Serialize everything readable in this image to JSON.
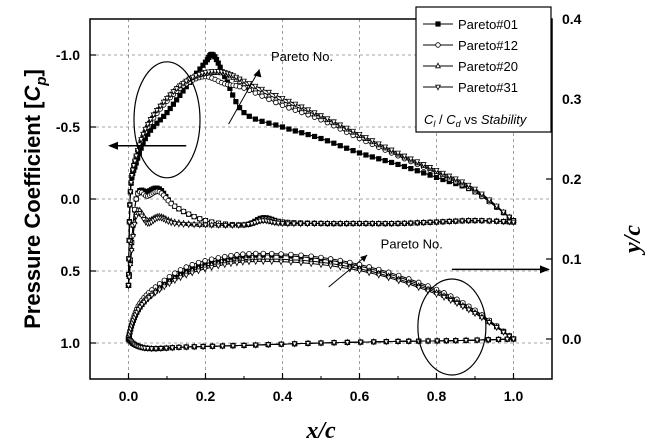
{
  "chart_data": {
    "type": "line",
    "title": "",
    "xlabel": "x/c",
    "ylabel_left": "Pressure Coefficient [C_p]",
    "ylabel_right": "y/c",
    "xlim": [
      -0.1,
      1.1
    ],
    "ylim_left": [
      1.25,
      -1.25
    ],
    "ylim_left_inverted": true,
    "ylim_right": [
      -0.05,
      0.4
    ],
    "x_ticks": [
      "0.0",
      "0.2",
      "0.4",
      "0.6",
      "0.8",
      "1.0"
    ],
    "y_left_ticks": [
      "-1.0",
      "-0.5",
      "0.0",
      "0.5",
      "1.0"
    ],
    "y_right_ticks": [
      "0.0",
      "0.1",
      "0.2",
      "0.3",
      "0.4"
    ],
    "grid": true,
    "legend_position": "top-right",
    "legend_note": {
      "cl": "C",
      "cl_sub": "l",
      "sep": " / ",
      "cd": "C",
      "cd_sub": "d",
      "vs": " vs ",
      "stab": "Stability"
    },
    "annotations": [
      "Pareto No.",
      "Pareto No."
    ],
    "series": [
      {
        "name": "Pareto#01",
        "marker": "square-filled",
        "cp_upper": [
          [
            0.0,
            0.6
          ],
          [
            0.005,
            -0.05
          ],
          [
            0.02,
            -0.25
          ],
          [
            0.05,
            -0.45
          ],
          [
            0.1,
            -0.6
          ],
          [
            0.15,
            -0.78
          ],
          [
            0.2,
            -0.95
          ],
          [
            0.22,
            -1.0
          ],
          [
            0.25,
            -0.85
          ],
          [
            0.3,
            -0.6
          ],
          [
            0.4,
            -0.5
          ],
          [
            0.5,
            -0.42
          ],
          [
            0.6,
            -0.32
          ],
          [
            0.7,
            -0.24
          ],
          [
            0.8,
            -0.15
          ],
          [
            0.9,
            -0.05
          ],
          [
            1.0,
            0.15
          ]
        ],
        "cp_lower": [
          [
            0.0,
            0.6
          ],
          [
            0.02,
            0.0
          ],
          [
            0.05,
            -0.05
          ],
          [
            0.08,
            -0.07
          ],
          [
            0.12,
            0.05
          ],
          [
            0.2,
            0.15
          ],
          [
            0.3,
            0.18
          ],
          [
            0.35,
            0.13
          ],
          [
            0.4,
            0.16
          ],
          [
            0.5,
            0.17
          ],
          [
            0.6,
            0.17
          ],
          [
            0.7,
            0.17
          ],
          [
            0.8,
            0.16
          ],
          [
            0.9,
            0.15
          ],
          [
            1.0,
            0.16
          ]
        ],
        "upper": [
          [
            0.0,
            0.0
          ],
          [
            0.01,
            0.02
          ],
          [
            0.03,
            0.04
          ],
          [
            0.07,
            0.06
          ],
          [
            0.15,
            0.085
          ],
          [
            0.25,
            0.1
          ],
          [
            0.35,
            0.105
          ],
          [
            0.5,
            0.1
          ],
          [
            0.65,
            0.085
          ],
          [
            0.8,
            0.06
          ],
          [
            0.9,
            0.035
          ],
          [
            1.0,
            0.0
          ]
        ],
        "lower": [
          [
            0.0,
            0.0
          ],
          [
            0.02,
            -0.008
          ],
          [
            0.06,
            -0.012
          ],
          [
            0.15,
            -0.01
          ],
          [
            0.3,
            -0.008
          ],
          [
            0.5,
            -0.005
          ],
          [
            0.7,
            -0.003
          ],
          [
            0.85,
            -0.002
          ],
          [
            1.0,
            0.0
          ]
        ]
      },
      {
        "name": "Pareto#12",
        "marker": "circle-open",
        "cp_upper": [
          [
            0.0,
            0.6
          ],
          [
            0.005,
            -0.05
          ],
          [
            0.02,
            -0.3
          ],
          [
            0.05,
            -0.5
          ],
          [
            0.1,
            -0.68
          ],
          [
            0.15,
            -0.8
          ],
          [
            0.2,
            -0.85
          ],
          [
            0.25,
            -0.8
          ],
          [
            0.3,
            -0.77
          ],
          [
            0.4,
            -0.65
          ],
          [
            0.5,
            -0.55
          ],
          [
            0.6,
            -0.42
          ],
          [
            0.7,
            -0.3
          ],
          [
            0.8,
            -0.18
          ],
          [
            0.9,
            -0.05
          ],
          [
            1.0,
            0.15
          ]
        ],
        "cp_lower": [
          [
            0.0,
            0.6
          ],
          [
            0.02,
            0.0
          ],
          [
            0.05,
            -0.02
          ],
          [
            0.08,
            -0.05
          ],
          [
            0.12,
            0.05
          ],
          [
            0.2,
            0.15
          ],
          [
            0.3,
            0.18
          ],
          [
            0.35,
            0.14
          ],
          [
            0.4,
            0.16
          ],
          [
            0.5,
            0.17
          ],
          [
            0.6,
            0.17
          ],
          [
            0.7,
            0.17
          ],
          [
            0.8,
            0.16
          ],
          [
            0.9,
            0.15
          ],
          [
            1.0,
            0.16
          ]
        ],
        "upper": [
          [
            0.0,
            0.0
          ],
          [
            0.01,
            0.022
          ],
          [
            0.03,
            0.045
          ],
          [
            0.07,
            0.065
          ],
          [
            0.15,
            0.09
          ],
          [
            0.25,
            0.103
          ],
          [
            0.35,
            0.107
          ],
          [
            0.5,
            0.102
          ],
          [
            0.65,
            0.087
          ],
          [
            0.8,
            0.062
          ],
          [
            0.9,
            0.036
          ],
          [
            1.0,
            0.0
          ]
        ],
        "lower": [
          [
            0.0,
            0.0
          ],
          [
            0.02,
            -0.008
          ],
          [
            0.06,
            -0.012
          ],
          [
            0.15,
            -0.01
          ],
          [
            0.3,
            -0.008
          ],
          [
            0.5,
            -0.005
          ],
          [
            0.7,
            -0.003
          ],
          [
            0.85,
            -0.002
          ],
          [
            1.0,
            0.0
          ]
        ]
      },
      {
        "name": "Pareto#20",
        "marker": "triangle-up-open",
        "cp_upper": [
          [
            0.0,
            0.6
          ],
          [
            0.005,
            -0.05
          ],
          [
            0.02,
            -0.3
          ],
          [
            0.05,
            -0.52
          ],
          [
            0.1,
            -0.7
          ],
          [
            0.15,
            -0.82
          ],
          [
            0.2,
            -0.87
          ],
          [
            0.25,
            -0.87
          ],
          [
            0.3,
            -0.8
          ],
          [
            0.4,
            -0.68
          ],
          [
            0.5,
            -0.57
          ],
          [
            0.6,
            -0.44
          ],
          [
            0.7,
            -0.31
          ],
          [
            0.8,
            -0.19
          ],
          [
            0.9,
            -0.06
          ],
          [
            1.0,
            0.15
          ]
        ],
        "cp_lower": [
          [
            0.0,
            0.6
          ],
          [
            0.02,
            0.1
          ],
          [
            0.05,
            0.15
          ],
          [
            0.08,
            0.12
          ],
          [
            0.12,
            0.16
          ],
          [
            0.2,
            0.18
          ],
          [
            0.3,
            0.18
          ],
          [
            0.35,
            0.15
          ],
          [
            0.4,
            0.17
          ],
          [
            0.5,
            0.17
          ],
          [
            0.6,
            0.17
          ],
          [
            0.7,
            0.17
          ],
          [
            0.8,
            0.16
          ],
          [
            0.9,
            0.15
          ],
          [
            1.0,
            0.16
          ]
        ],
        "upper": [
          [
            0.0,
            0.0
          ],
          [
            0.01,
            0.02
          ],
          [
            0.03,
            0.042
          ],
          [
            0.07,
            0.06
          ],
          [
            0.15,
            0.083
          ],
          [
            0.25,
            0.096
          ],
          [
            0.35,
            0.1
          ],
          [
            0.5,
            0.096
          ],
          [
            0.65,
            0.082
          ],
          [
            0.8,
            0.058
          ],
          [
            0.9,
            0.033
          ],
          [
            1.0,
            0.0
          ]
        ],
        "lower": [
          [
            0.0,
            0.0
          ],
          [
            0.02,
            -0.008
          ],
          [
            0.06,
            -0.012
          ],
          [
            0.15,
            -0.01
          ],
          [
            0.3,
            -0.008
          ],
          [
            0.5,
            -0.005
          ],
          [
            0.7,
            -0.003
          ],
          [
            0.85,
            -0.002
          ],
          [
            1.0,
            0.0
          ]
        ]
      },
      {
        "name": "Pareto#31",
        "marker": "triangle-down-open",
        "cp_upper": [
          [
            0.0,
            0.6
          ],
          [
            0.005,
            -0.05
          ],
          [
            0.02,
            -0.3
          ],
          [
            0.05,
            -0.52
          ],
          [
            0.1,
            -0.7
          ],
          [
            0.15,
            -0.82
          ],
          [
            0.2,
            -0.88
          ],
          [
            0.25,
            -0.88
          ],
          [
            0.3,
            -0.82
          ],
          [
            0.4,
            -0.7
          ],
          [
            0.5,
            -0.58
          ],
          [
            0.6,
            -0.45
          ],
          [
            0.7,
            -0.32
          ],
          [
            0.8,
            -0.2
          ],
          [
            0.9,
            -0.07
          ],
          [
            1.0,
            0.15
          ]
        ],
        "cp_lower": [
          [
            0.0,
            0.6
          ],
          [
            0.02,
            0.12
          ],
          [
            0.05,
            0.17
          ],
          [
            0.08,
            0.13
          ],
          [
            0.12,
            0.17
          ],
          [
            0.2,
            0.18
          ],
          [
            0.3,
            0.18
          ],
          [
            0.35,
            0.15
          ],
          [
            0.4,
            0.17
          ],
          [
            0.5,
            0.17
          ],
          [
            0.6,
            0.17
          ],
          [
            0.7,
            0.17
          ],
          [
            0.8,
            0.16
          ],
          [
            0.9,
            0.15
          ],
          [
            1.0,
            0.16
          ]
        ],
        "upper": [
          [
            0.0,
            0.0
          ],
          [
            0.01,
            0.02
          ],
          [
            0.03,
            0.04
          ],
          [
            0.07,
            0.058
          ],
          [
            0.15,
            0.08
          ],
          [
            0.25,
            0.093
          ],
          [
            0.35,
            0.097
          ],
          [
            0.5,
            0.093
          ],
          [
            0.65,
            0.08
          ],
          [
            0.8,
            0.056
          ],
          [
            0.9,
            0.032
          ],
          [
            1.0,
            0.0
          ]
        ],
        "lower": [
          [
            0.0,
            0.0
          ],
          [
            0.02,
            -0.008
          ],
          [
            0.06,
            -0.012
          ],
          [
            0.15,
            -0.01
          ],
          [
            0.3,
            -0.008
          ],
          [
            0.5,
            -0.005
          ],
          [
            0.7,
            -0.003
          ],
          [
            0.85,
            -0.002
          ],
          [
            1.0,
            0.0
          ]
        ]
      }
    ]
  }
}
